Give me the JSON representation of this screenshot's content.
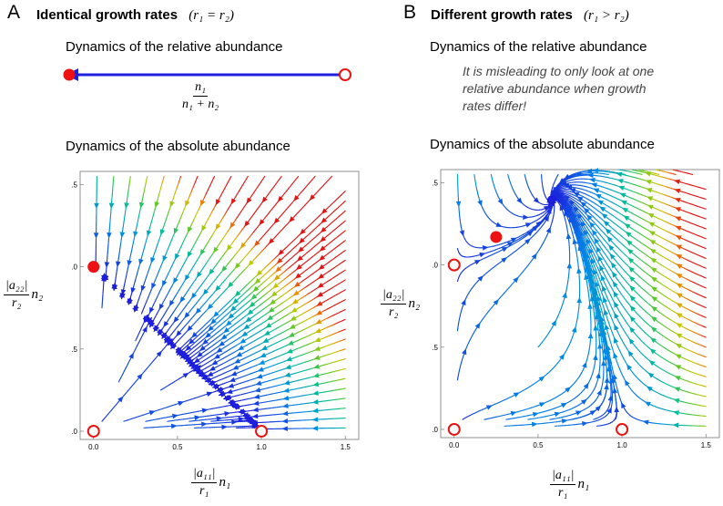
{
  "panel_a": {
    "letter": "A",
    "title": "Identical growth rates",
    "condition": "(r₁ = r₂)",
    "relative_heading": "Dynamics of the relative abundance",
    "relative_label": {
      "numerator": "n₁",
      "denominator": "n₁ + n₂"
    },
    "absolute_heading": "Dynamics of the absolute abundance",
    "fixed_points": [
      {
        "x": 0.0,
        "y": 0.0,
        "kind": "unstable"
      },
      {
        "x": 1.0,
        "y": 0.0,
        "kind": "unstable"
      },
      {
        "x": 0.0,
        "y": 1.0,
        "kind": "stable"
      }
    ]
  },
  "panel_b": {
    "letter": "B",
    "title": "Different growth rates",
    "condition": "(r₁ > r₂)",
    "relative_heading": "Dynamics of the relative abundance",
    "note_lines": [
      "It is misleading to only look at one",
      "relative abundance when growth",
      "rates differ!"
    ],
    "absolute_heading": "Dynamics of the absolute abundance",
    "fixed_points": [
      {
        "x": 0.0,
        "y": 0.0,
        "kind": "unstable"
      },
      {
        "x": 1.0,
        "y": 0.0,
        "kind": "unstable"
      },
      {
        "x": 0.0,
        "y": 1.0,
        "kind": "unstable"
      },
      {
        "x": 0.25,
        "y": 1.17,
        "kind": "stable"
      }
    ]
  },
  "axes": {
    "x_label": {
      "numerator": "|a₁₁|",
      "denominator": "r₁",
      "variable": "n₁"
    },
    "y_label": {
      "numerator": "|a₂₂|",
      "denominator": "r₂",
      "variable": "n₂"
    },
    "xlim": [
      -0.08,
      1.58
    ],
    "ylim": [
      -0.05,
      1.58
    ],
    "x_ticks": [
      "0.0",
      "0.5",
      "1.0",
      "1.5"
    ],
    "y_ticks": [
      "0.0",
      "0.5",
      "1.0",
      "1.5"
    ]
  },
  "chart_data": [
    {
      "type": "streamplot",
      "title": "Dynamics of the absolute abundance (r1 = r2)",
      "xlabel": "|a11|/r1 n1",
      "ylabel": "|a22|/r2 n2",
      "xlim": [
        -0.08,
        1.58
      ],
      "ylim": [
        -0.05,
        1.58
      ],
      "x_ticks": [
        0.0,
        0.5,
        1.0,
        1.5
      ],
      "y_ticks": [
        0.0,
        0.5,
        1.0,
        1.5
      ],
      "stable_point": [
        0.0,
        1.0
      ],
      "unstable_points": [
        [
          0.0,
          0.0
        ],
        [
          1.0,
          0.0
        ]
      ],
      "color_scale": "blue (slow) to red (fast)"
    },
    {
      "type": "streamplot",
      "title": "Dynamics of the absolute abundance (r1 > r2)",
      "xlabel": "|a11|/r1 n1",
      "ylabel": "|a22|/r2 n2",
      "xlim": [
        -0.08,
        1.58
      ],
      "ylim": [
        -0.05,
        1.58
      ],
      "x_ticks": [
        0.0,
        0.5,
        1.0,
        1.5
      ],
      "y_ticks": [
        0.0,
        0.5,
        1.0,
        1.5
      ],
      "stable_point": [
        0.25,
        1.17
      ],
      "unstable_points": [
        [
          0.0,
          0.0
        ],
        [
          1.0,
          0.0
        ],
        [
          0.0,
          1.0
        ]
      ],
      "color_scale": "blue (slow) to red (fast)"
    }
  ],
  "colors": {
    "stream_slow": "#1a1adc",
    "stream_fast": "#e01010",
    "fixed_point": "#ee1111",
    "arrow": "#1f1fe0"
  }
}
